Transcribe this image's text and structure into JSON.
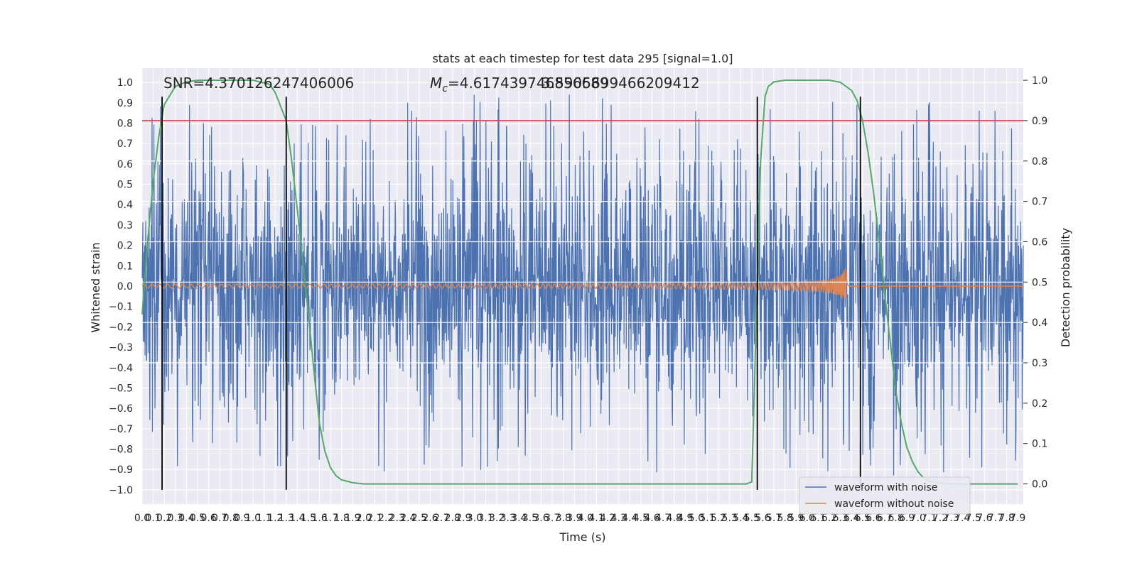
{
  "chart_data": {
    "type": "line",
    "title": "stats at each timestep for test data 295 [signal=1.0]",
    "xlabel": "Time (s)",
    "ylabel_left": "Whitened strain",
    "ylabel_right": "Detection probability",
    "xlim": [
      0.0,
      7.95
    ],
    "ylim_left": [
      -1.07,
      1.07
    ],
    "ylim_right": [
      -0.05,
      1.03
    ],
    "x_ticks": [
      "0.0",
      "0.1",
      "0.2",
      "0.3",
      "0.4",
      "0.5",
      "0.6",
      "0.7",
      "0.8",
      "0.9",
      "1.0",
      "1.1",
      "1.2",
      "1.3",
      "1.4",
      "1.5",
      "1.6",
      "1.7",
      "1.8",
      "1.9",
      "2.0",
      "2.1",
      "2.2",
      "2.3",
      "2.4",
      "2.5",
      "2.6",
      "2.7",
      "2.8",
      "2.9",
      "3.0",
      "3.1",
      "3.2",
      "3.3",
      "3.4",
      "3.5",
      "3.6",
      "3.7",
      "3.8",
      "3.9",
      "4.0",
      "4.1",
      "4.2",
      "4.3",
      "4.4",
      "4.5",
      "4.6",
      "4.7",
      "4.8",
      "4.9",
      "5.0",
      "5.1",
      "5.2",
      "5.3",
      "5.4",
      "5.5",
      "5.6",
      "5.7",
      "5.8",
      "5.9",
      "6.0",
      "6.1",
      "6.2",
      "6.3",
      "6.4",
      "6.5",
      "6.6",
      "6.7",
      "6.8",
      "6.9",
      "7.0",
      "7.1",
      "7.2",
      "7.3",
      "7.4",
      "7.5",
      "7.6",
      "7.7",
      "7.8",
      "7.9"
    ],
    "x_tick_labels": [
      "0.0",
      "0.1",
      "0.2",
      "0.3",
      "0.4",
      "0.5",
      "0.6",
      "0.7",
      "0.8",
      "0.9",
      "1.0",
      "1.1",
      "1.2",
      "1.3",
      "1.4",
      "1.5",
      "1.6",
      "1.7",
      "1.8",
      "1.9",
      "2.0",
      "2.1",
      "2.2",
      "2.3",
      "2.4",
      "2.5",
      "2.6",
      "2.7",
      "2.8",
      "2.9",
      "3.0",
      "3.1",
      "3.2",
      "3.3",
      "3.4",
      "3.5",
      "3.6",
      "3.7",
      "3.8",
      "3.9",
      "4.0",
      "4.1",
      "4.2",
      "4.3",
      "4.4",
      "4.5",
      "4.6",
      "4.7",
      "4.8",
      "4.9",
      "5.0",
      "5.1",
      "5.2",
      "5.3",
      "5.4",
      "5.5",
      "5.6",
      "5.7",
      "5.8",
      "5.9",
      "6.0",
      "6.1",
      "6.2",
      "6.3",
      "6.4",
      "6.5",
      "6.6",
      "6.7",
      "6.8",
      "6.9",
      "7.0",
      "7.1",
      "7.2",
      "7.3",
      "7.4",
      "7.5",
      "7.6",
      "7.7",
      "7.8",
      "7.9"
    ],
    "x_tick_values": [
      0.0,
      0.1,
      0.2,
      0.3,
      0.4,
      0.5,
      0.6,
      0.7,
      0.8,
      0.9,
      1.0,
      1.1,
      1.2,
      1.3,
      1.4,
      1.5,
      1.6,
      1.7,
      1.8,
      1.9,
      2.0,
      2.1,
      2.2,
      2.3,
      2.4,
      2.5,
      2.6,
      2.7,
      2.8,
      2.9,
      3.0,
      3.1,
      3.2,
      3.3,
      3.4,
      3.5,
      3.6,
      3.7,
      3.8,
      3.9,
      4.0,
      4.1,
      4.2,
      4.3,
      4.4,
      4.5,
      4.6,
      4.7,
      4.8,
      4.9,
      5.0,
      5.1,
      5.2,
      5.3,
      5.4,
      5.5,
      5.6,
      5.7,
      5.8,
      5.9,
      6.0,
      6.1,
      6.2,
      6.3,
      6.4,
      6.5,
      6.6,
      6.7,
      6.8,
      6.9,
      7.0,
      7.1,
      7.2,
      7.3,
      7.4,
      7.5,
      7.6,
      7.7,
      7.8,
      7.9
    ],
    "x_tick_display": [
      "0.0",
      "0.1",
      "0.2",
      "0.3",
      "0.4",
      "0.5",
      "0.6",
      "0.7",
      "0.8",
      "0.9",
      "1.0",
      "1.1",
      "1.2",
      "1.3",
      "1.4",
      "1.5",
      "1.6",
      "1.7",
      "1.8",
      "1.9",
      "2.0",
      "2.1",
      "2.2",
      "2.3",
      "2.4",
      "2.5",
      "2.6",
      "2.7",
      "2.8",
      "2.9",
      "3.0",
      "3.1",
      "3.2",
      "3.3",
      "3.4",
      "3.5",
      "3.6",
      "3.7",
      "3.8",
      "3.9",
      "4.0",
      "4.1",
      "4.2",
      "4.3",
      "4.4",
      "4.5",
      "4.6",
      "4.7",
      "4.8",
      "4.9",
      "5.0",
      "5.1",
      "5.2",
      "5.3",
      "5.4",
      "5.5",
      "5.6",
      "5.7",
      "5.8",
      "5.9",
      "6.0",
      "6.1",
      "6.2",
      "6.3",
      "6.4",
      "6.5",
      "6.6",
      "6.7",
      "6.8",
      "6.9",
      "7.0",
      "7.1",
      "7.2",
      "7.3",
      "7.4",
      "7.5",
      "7.6",
      "7.7",
      "7.8",
      "7.9"
    ],
    "y_ticks_left": [
      "1.0",
      "0.9",
      "0.8",
      "0.7",
      "0.6",
      "0.5",
      "0.4",
      "0.3",
      "0.2",
      "0.1",
      "0.0",
      "−0.1",
      "−0.2",
      "−0.3",
      "−0.4",
      "−0.5",
      "−0.6",
      "−0.7",
      "−0.8",
      "−0.9",
      "−1.0"
    ],
    "y_tick_values_left": [
      1.0,
      0.9,
      0.8,
      0.7,
      0.6,
      0.5,
      0.4,
      0.3,
      0.2,
      0.1,
      0.0,
      -0.1,
      -0.2,
      -0.3,
      -0.4,
      -0.5,
      -0.6,
      -0.7,
      -0.8,
      -0.9,
      -1.0
    ],
    "y_ticks_right": [
      "1.0",
      "0.9",
      "0.8",
      "0.7",
      "0.6",
      "0.5",
      "0.4",
      "0.3",
      "0.2",
      "0.1",
      "0.0"
    ],
    "y_tick_values_right": [
      1.0,
      0.9,
      0.8,
      0.7,
      0.6,
      0.5,
      0.4,
      0.3,
      0.2,
      0.1,
      0.0
    ],
    "annotations": {
      "snr": "SNR=4.370126247406006",
      "mc_symbol": "M",
      "mc_sub": "c",
      "mc_value": "=4.617439746856689",
      "overlap": "3.5905699466209412"
    },
    "series": [
      {
        "name": "waveform with noise",
        "color": "#4c72b0",
        "kind": "noise",
        "amplitude_range": [
          -0.99,
          0.94
        ]
      },
      {
        "name": "waveform without noise",
        "color": "#dd8452",
        "kind": "chirp",
        "start": 0.0,
        "merger": 6.35,
        "peak": 0.11
      }
    ],
    "detection_probability": {
      "color": "#55a868",
      "points": [
        [
          0.0,
          0.42
        ],
        [
          0.05,
          0.6
        ],
        [
          0.1,
          0.75
        ],
        [
          0.15,
          0.86
        ],
        [
          0.2,
          0.94
        ],
        [
          0.3,
          0.985
        ],
        [
          0.4,
          0.996
        ],
        [
          0.5,
          1.0
        ],
        [
          1.0,
          1.0
        ],
        [
          1.15,
          0.99
        ],
        [
          1.2,
          0.97
        ],
        [
          1.3,
          0.9
        ],
        [
          1.35,
          0.8
        ],
        [
          1.4,
          0.68
        ],
        [
          1.45,
          0.55
        ],
        [
          1.5,
          0.42
        ],
        [
          1.55,
          0.28
        ],
        [
          1.6,
          0.15
        ],
        [
          1.65,
          0.08
        ],
        [
          1.7,
          0.04
        ],
        [
          1.75,
          0.02
        ],
        [
          1.8,
          0.01
        ],
        [
          1.9,
          0.003
        ],
        [
          2.0,
          0.0
        ],
        [
          5.45,
          0.0
        ],
        [
          5.5,
          0.005
        ],
        [
          5.52,
          0.2
        ],
        [
          5.55,
          0.5
        ],
        [
          5.58,
          0.8
        ],
        [
          5.62,
          0.96
        ],
        [
          5.65,
          0.985
        ],
        [
          5.7,
          0.996
        ],
        [
          5.8,
          1.0
        ],
        [
          6.2,
          1.0
        ],
        [
          6.3,
          0.995
        ],
        [
          6.4,
          0.975
        ],
        [
          6.45,
          0.95
        ],
        [
          6.5,
          0.9
        ],
        [
          6.55,
          0.82
        ],
        [
          6.6,
          0.72
        ],
        [
          6.65,
          0.6
        ],
        [
          6.7,
          0.47
        ],
        [
          6.75,
          0.35
        ],
        [
          6.8,
          0.23
        ],
        [
          6.85,
          0.15
        ],
        [
          6.9,
          0.09
        ],
        [
          6.95,
          0.055
        ],
        [
          7.0,
          0.03
        ],
        [
          7.05,
          0.015
        ],
        [
          7.1,
          0.007
        ],
        [
          7.2,
          0.002
        ],
        [
          7.3,
          0.0
        ],
        [
          7.9,
          0.0
        ]
      ]
    },
    "threshold": {
      "value": 0.9,
      "axis": "right",
      "color": "#c44e52"
    },
    "vertical_lines": [
      0.18,
      1.3,
      5.55,
      6.48
    ],
    "vertical_lines_range": [
      -1.0,
      0.93
    ],
    "legend": {
      "placement": "lower right",
      "entries": [
        "waveform with noise",
        "waveform without noise"
      ]
    },
    "grid": true,
    "background": "#eaeaf2"
  }
}
